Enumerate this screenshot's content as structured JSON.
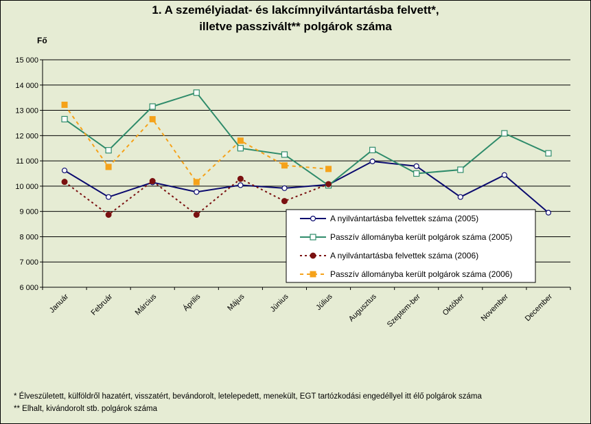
{
  "chart_data": {
    "type": "line",
    "title": "1. A személyiadat- és lakcímnyilvántartásba felvett*,",
    "subtitle": "illetve passzivált** polgárok száma",
    "ylabel": "Fő",
    "ylim": [
      6000,
      15000
    ],
    "yticks": [
      "6 000",
      "7 000",
      "8 000",
      "9 000",
      "10 000",
      "11 000",
      "12 000",
      "13 000",
      "14 000",
      "15 000"
    ],
    "ytick_values": [
      6000,
      7000,
      8000,
      9000,
      10000,
      11000,
      12000,
      13000,
      14000,
      15000
    ],
    "categories": [
      "Január",
      "Február",
      "Március",
      "Április",
      "Május",
      "Június",
      "Július",
      "Augusztus",
      "Szeptem-ber",
      "Október",
      "November",
      "December"
    ],
    "grid": "horizontal",
    "legend_position": "right",
    "series": [
      {
        "name": "A nyilvántartásba felvettek száma (2005)",
        "color": "#0a0a6e",
        "style": "solid",
        "marker": "circle-open",
        "values": [
          10620,
          9570,
          10150,
          9770,
          10040,
          9920,
          10060,
          10980,
          10790,
          9570,
          10440,
          8950
        ]
      },
      {
        "name": "Passzív állományba került polgárok száma (2005)",
        "color": "#2e8b6a",
        "style": "solid",
        "marker": "square-open",
        "values": [
          12650,
          11420,
          13150,
          13700,
          11500,
          11250,
          10030,
          11430,
          10500,
          10650,
          12090,
          11300
        ]
      },
      {
        "name": "A nyilvántartásba felvettek száma (2006)",
        "color": "#7a1010",
        "style": "dotted",
        "marker": "diamond-filled",
        "values": [
          10170,
          8870,
          10200,
          8870,
          10290,
          9410,
          10080,
          null,
          null,
          null,
          null,
          null
        ]
      },
      {
        "name": "Passzív állományba került polgárok száma (2006)",
        "color": "#f5a21a",
        "style": "dashed",
        "marker": "square-filled",
        "values": [
          13220,
          10760,
          12650,
          10160,
          11800,
          10820,
          10680,
          null,
          null,
          null,
          null,
          null
        ]
      }
    ]
  },
  "footnotes": {
    "f1": "* Élveszületett, külföldről hazatért, visszatért, bevándorolt, letelepedett, menekült, EGT tartózkodási engedéllyel itt élő  polgárok száma",
    "f2": "** Elhalt, kivándorolt stb. polgárok száma"
  }
}
